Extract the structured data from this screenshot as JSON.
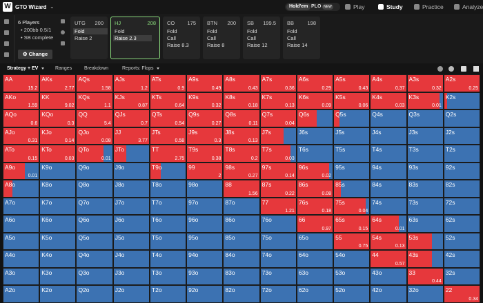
{
  "topbar": {
    "logo": "W",
    "brand": "GTO Wizard",
    "game_toggle": [
      "Hold'em",
      "PLO"
    ],
    "badge": "NEW",
    "nav": [
      "Play",
      "Study",
      "Practice",
      "Analyze"
    ],
    "active_nav": 1
  },
  "settings": {
    "players": "6 Players",
    "stack": "• 200bb 0.5/1",
    "status": "• SB complete",
    "button": "Change"
  },
  "positions": [
    {
      "name": "UTG",
      "stack": 200,
      "actions": [
        "Fold",
        "Raise 2"
      ],
      "chosen": 0
    },
    {
      "name": "HJ",
      "stack": 208,
      "actions": [
        "Fold",
        "Raise 2.3"
      ],
      "chosen": 1,
      "selected": true
    },
    {
      "name": "CO",
      "stack": 175,
      "actions": [
        "Fold",
        "Call",
        "Raise 8.3"
      ]
    },
    {
      "name": "BTN",
      "stack": 200,
      "actions": [
        "Fold",
        "Call",
        "Raise 8"
      ]
    },
    {
      "name": "SB",
      "stack": 199.5,
      "actions": [
        "Fold",
        "Call",
        "Raise 12"
      ]
    },
    {
      "name": "BB",
      "stack": 198,
      "actions": [
        "Fold",
        "Call",
        "Raise 14"
      ]
    }
  ],
  "tabs": [
    "Strategy + EV",
    "Ranges",
    "Breakdown",
    "Reports: Flops"
  ],
  "grid": {
    "colors": {
      "raise": "#e6383c",
      "fold": "#3c72b2"
    },
    "rows": [
      [
        [
          "AA",
          100,
          15.2
        ],
        [
          "AKs",
          100,
          2.77
        ],
        [
          "AQs",
          100,
          1.58
        ],
        [
          "AJs",
          100,
          1.2
        ],
        [
          "ATs",
          100,
          0.9
        ],
        [
          "A9s",
          100,
          0.49
        ],
        [
          "A8s",
          100,
          0.43
        ],
        [
          "A7s",
          100,
          0.36
        ],
        [
          "A6s",
          100,
          0.29
        ],
        [
          "A5s",
          100,
          0.43
        ],
        [
          "A4s",
          100,
          0.37
        ],
        [
          "A3s",
          100,
          0.32
        ],
        [
          "A2s",
          100,
          0.25
        ]
      ],
      [
        [
          "AKo",
          100,
          1.59
        ],
        [
          "KK",
          100,
          9.02
        ],
        [
          "KQs",
          100,
          1.1
        ],
        [
          "KJs",
          100,
          0.87
        ],
        [
          "KTs",
          100,
          0.64
        ],
        [
          "K9s",
          100,
          0.32
        ],
        [
          "K8s",
          100,
          0.18
        ],
        [
          "K7s",
          100,
          0.13
        ],
        [
          "K6s",
          100,
          0.09
        ],
        [
          "K5s",
          100,
          0.06
        ],
        [
          "K4s",
          100,
          0.03
        ],
        [
          "K3s",
          90,
          0.01
        ],
        [
          "K2s",
          8
        ]
      ],
      [
        [
          "AQo",
          100,
          0.6
        ],
        [
          "KQo",
          100,
          0.3
        ],
        [
          "QQ",
          100,
          5.4
        ],
        [
          "QJs",
          100,
          0.7
        ],
        [
          "QTs",
          100,
          0.54
        ],
        [
          "Q9s",
          100,
          0.27
        ],
        [
          "Q8s",
          100,
          0.11
        ],
        [
          "Q7s",
          100,
          0.04
        ],
        [
          "Q6s",
          55
        ],
        [
          "Q5s",
          15
        ],
        [
          "Q4s",
          0
        ],
        [
          "Q3s",
          0
        ],
        [
          "Q2s",
          0
        ]
      ],
      [
        [
          "AJo",
          100,
          0.31
        ],
        [
          "KJo",
          100,
          0.14
        ],
        [
          "QJo",
          100,
          0.08
        ],
        [
          "JJ",
          100,
          3.77
        ],
        [
          "JTs",
          100,
          0.58
        ],
        [
          "J9s",
          100,
          0.3
        ],
        [
          "J8s",
          100,
          0.13
        ],
        [
          "J7s",
          65
        ],
        [
          "J6s",
          0
        ],
        [
          "J5s",
          0
        ],
        [
          "J4s",
          0
        ],
        [
          "J3s",
          0
        ],
        [
          "J2s",
          0
        ]
      ],
      [
        [
          "ATo",
          100,
          0.15
        ],
        [
          "KTo",
          100,
          0.03
        ],
        [
          "QTo",
          75,
          0.01
        ],
        [
          "JTo",
          35
        ],
        [
          "TT",
          100,
          2.75
        ],
        [
          "T9s",
          100,
          0.38
        ],
        [
          "T8s",
          100,
          0.2
        ],
        [
          "T7s",
          85,
          0.03
        ],
        [
          "T6s",
          0
        ],
        [
          "T5s",
          0
        ],
        [
          "T4s",
          0
        ],
        [
          "T3s",
          0
        ],
        [
          "T2s",
          0
        ]
      ],
      [
        [
          "A9o",
          60,
          0.01
        ],
        [
          "K9o",
          0
        ],
        [
          "Q9o",
          0
        ],
        [
          "J9o",
          0
        ],
        [
          "T9o",
          30
        ],
        [
          "99",
          100,
          2
        ],
        [
          "98s",
          100,
          0.27
        ],
        [
          "97s",
          100,
          0.14
        ],
        [
          "96s",
          90,
          0.02
        ],
        [
          "95s",
          0
        ],
        [
          "94s",
          0
        ],
        [
          "93s",
          0
        ],
        [
          "92s",
          0
        ]
      ],
      [
        [
          "A8o",
          25
        ],
        [
          "K8o",
          0
        ],
        [
          "Q8o",
          0
        ],
        [
          "J8o",
          0
        ],
        [
          "T8o",
          0
        ],
        [
          "98o",
          0
        ],
        [
          "88",
          100,
          1.56
        ],
        [
          "87s",
          100,
          0.22
        ],
        [
          "86s",
          100,
          0.08
        ],
        [
          "85s",
          20
        ],
        [
          "84s",
          0
        ],
        [
          "83s",
          0
        ],
        [
          "82s",
          0
        ]
      ],
      [
        [
          "A7o",
          0
        ],
        [
          "K7o",
          0
        ],
        [
          "Q7o",
          0
        ],
        [
          "J7o",
          0
        ],
        [
          "T7o",
          0
        ],
        [
          "97o",
          0
        ],
        [
          "87o",
          0
        ],
        [
          "77",
          100,
          1.21
        ],
        [
          "76s",
          100,
          0.18
        ],
        [
          "75s",
          90,
          0.04
        ],
        [
          "74s",
          0
        ],
        [
          "73s",
          0
        ],
        [
          "72s",
          0
        ]
      ],
      [
        [
          "A6o",
          0
        ],
        [
          "K6o",
          0
        ],
        [
          "Q6o",
          0
        ],
        [
          "J6o",
          0
        ],
        [
          "T6o",
          0
        ],
        [
          "96o",
          0
        ],
        [
          "86o",
          0
        ],
        [
          "76o",
          0
        ],
        [
          "66",
          100,
          0.97
        ],
        [
          "65s",
          100,
          0.15
        ],
        [
          "64s",
          80,
          0.01
        ],
        [
          "63s",
          0
        ],
        [
          "62s",
          0
        ]
      ],
      [
        [
          "A5o",
          0
        ],
        [
          "K5o",
          0
        ],
        [
          "Q5o",
          0
        ],
        [
          "J5o",
          0
        ],
        [
          "T5o",
          0
        ],
        [
          "95o",
          0
        ],
        [
          "85o",
          0
        ],
        [
          "75o",
          0
        ],
        [
          "65o",
          0
        ],
        [
          "55",
          100,
          0.75
        ],
        [
          "54s",
          100,
          0.13
        ],
        [
          "53s",
          70
        ],
        [
          "52s",
          0
        ]
      ],
      [
        [
          "A4o",
          0
        ],
        [
          "K4o",
          0
        ],
        [
          "Q4o",
          0
        ],
        [
          "J4o",
          0
        ],
        [
          "T4o",
          0
        ],
        [
          "94o",
          0
        ],
        [
          "84o",
          0
        ],
        [
          "74o",
          0
        ],
        [
          "64o",
          0
        ],
        [
          "54o",
          0
        ],
        [
          "44",
          100,
          0.57
        ],
        [
          "43s",
          70
        ],
        [
          "42s",
          0
        ]
      ],
      [
        [
          "A3o",
          0
        ],
        [
          "K3o",
          0
        ],
        [
          "Q3o",
          0
        ],
        [
          "J3o",
          0
        ],
        [
          "T3o",
          0
        ],
        [
          "93o",
          0
        ],
        [
          "83o",
          0
        ],
        [
          "73o",
          0
        ],
        [
          "63o",
          0
        ],
        [
          "53o",
          0
        ],
        [
          "43o",
          0
        ],
        [
          "33",
          100,
          0.44
        ],
        [
          "32s",
          0
        ]
      ],
      [
        [
          "A2o",
          0
        ],
        [
          "K2o",
          0
        ],
        [
          "Q2o",
          0
        ],
        [
          "J2o",
          0
        ],
        [
          "T2o",
          0
        ],
        [
          "92o",
          0
        ],
        [
          "82o",
          0
        ],
        [
          "72o",
          0
        ],
        [
          "62o",
          0
        ],
        [
          "52o",
          0
        ],
        [
          "42o",
          0
        ],
        [
          "32o",
          0
        ],
        [
          "22",
          100,
          0.34
        ]
      ]
    ]
  }
}
